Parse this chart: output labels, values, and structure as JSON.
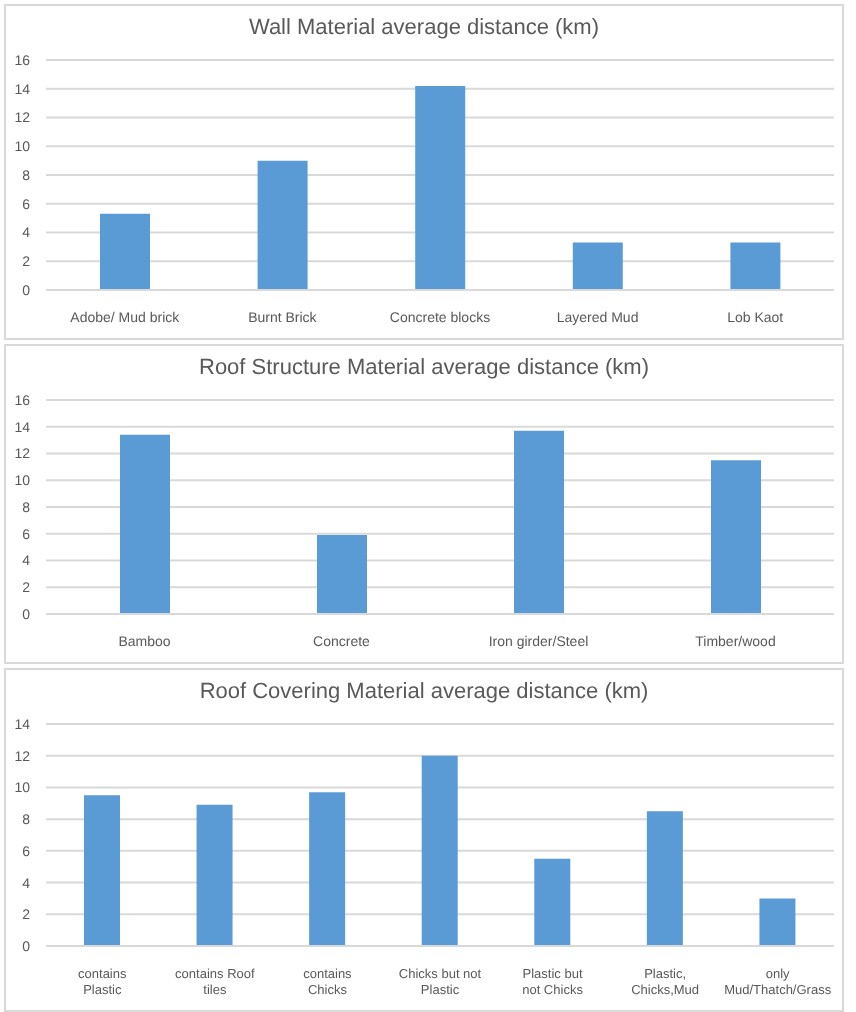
{
  "chart_data": [
    {
      "type": "bar",
      "title": "Wall Material average distance (km)",
      "categories": [
        "Adobe/ Mud brick",
        "Burnt Brick",
        "Concrete blocks",
        "Layered Mud",
        "Lob Kaot"
      ],
      "values": [
        5.3,
        9.0,
        14.2,
        3.3,
        3.3
      ],
      "color": "#5b9bd5",
      "ylim": [
        0,
        16
      ],
      "yticks": [
        0,
        2,
        4,
        6,
        8,
        10,
        12,
        14,
        16
      ],
      "grid": "y"
    },
    {
      "type": "bar",
      "title": "Roof Structure Material average distance (km)",
      "categories": [
        "Bamboo",
        "Concrete",
        "Iron girder/Steel",
        "Timber/wood"
      ],
      "values": [
        13.4,
        5.9,
        13.7,
        11.5
      ],
      "color": "#5b9bd5",
      "ylim": [
        0,
        16
      ],
      "yticks": [
        0,
        2,
        4,
        6,
        8,
        10,
        12,
        14,
        16
      ],
      "grid": "y"
    },
    {
      "type": "bar",
      "title": "Roof Covering Material average distance (km)",
      "categories": [
        "contains Plastic",
        "contains Roof tiles",
        "contains Chicks",
        "Chicks but not Plastic",
        "Plastic but not Chicks",
        "Plastic,Chicks,Mud",
        "only Mud/Thatch/Grass"
      ],
      "values": [
        9.5,
        8.9,
        9.7,
        12.0,
        5.5,
        8.5,
        3.0
      ],
      "color": "#5b9bd5",
      "ylim": [
        0,
        14
      ],
      "yticks": [
        0,
        2,
        4,
        6,
        8,
        10,
        12,
        14
      ],
      "grid": "y"
    }
  ]
}
